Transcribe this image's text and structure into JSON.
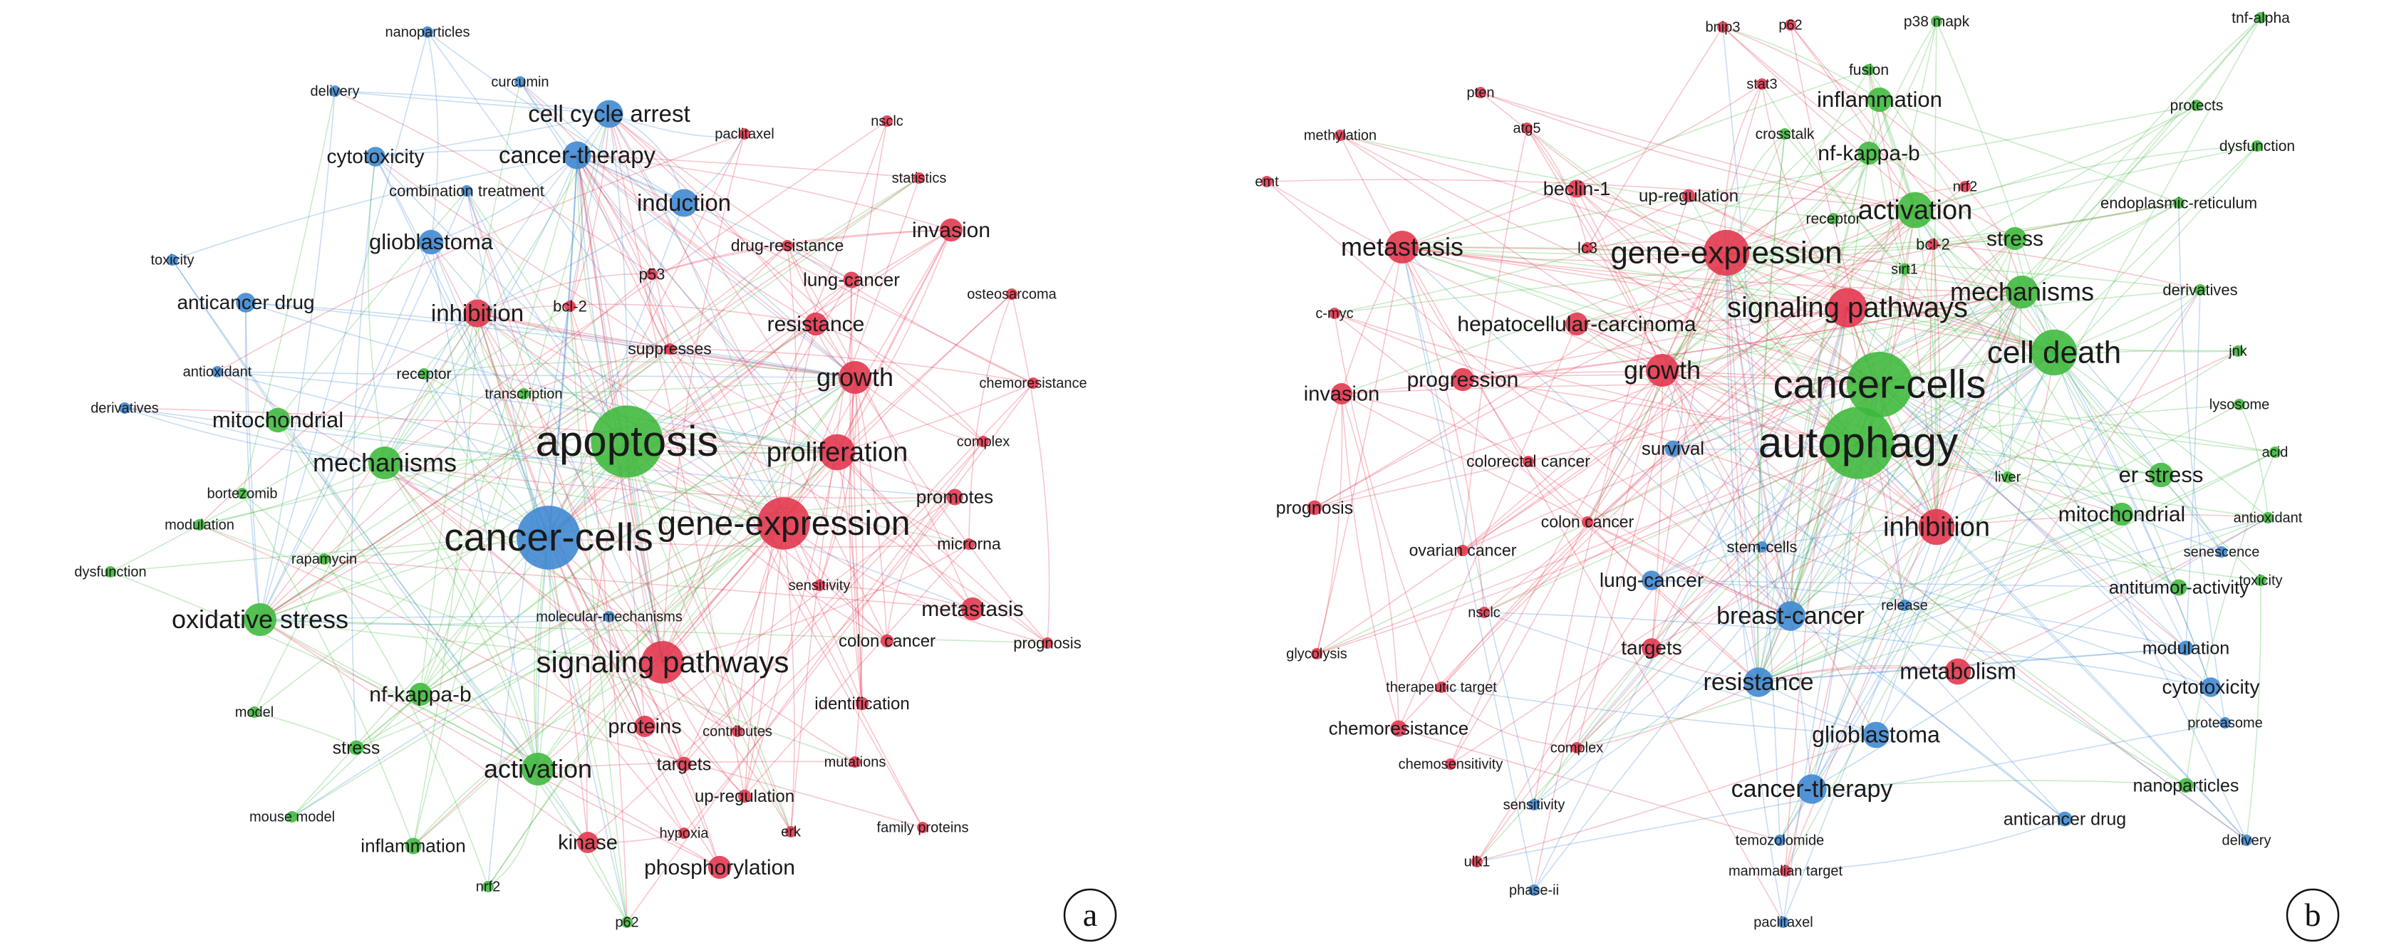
{
  "colors": {
    "red": "#e2334a",
    "green": "#3cb83a",
    "blue": "#3b86d0"
  },
  "panels": [
    {
      "letter": "a",
      "nodes": [
        {
          "label": "apoptosis",
          "c": "green",
          "w": 60
        },
        {
          "label": "cancer-cells",
          "c": "blue",
          "w": 55
        },
        {
          "label": "gene-expression",
          "c": "red",
          "w": 48
        },
        {
          "label": "signaling pathways",
          "c": "red",
          "w": 42
        },
        {
          "label": "proliferation",
          "c": "red",
          "w": 38
        },
        {
          "label": "growth",
          "c": "red",
          "w": 36
        },
        {
          "label": "mechanisms",
          "c": "green",
          "w": 36
        },
        {
          "label": "activation",
          "c": "green",
          "w": 36
        },
        {
          "label": "oxidative stress",
          "c": "green",
          "w": 36
        },
        {
          "label": "cell cycle arrest",
          "c": "blue",
          "w": 33
        },
        {
          "label": "cancer-therapy",
          "c": "blue",
          "w": 33
        },
        {
          "label": "inhibition",
          "c": "red",
          "w": 33
        },
        {
          "label": "induction",
          "c": "blue",
          "w": 33
        },
        {
          "label": "mitochondrial",
          "c": "green",
          "w": 31
        },
        {
          "label": "glioblastoma",
          "c": "blue",
          "w": 31
        },
        {
          "label": "resistance",
          "c": "red",
          "w": 30
        },
        {
          "label": "invasion",
          "c": "red",
          "w": 30
        },
        {
          "label": "metastasis",
          "c": "red",
          "w": 30
        },
        {
          "label": "phosphorylation",
          "c": "red",
          "w": 30
        },
        {
          "label": "nf-kappa-b",
          "c": "green",
          "w": 30
        },
        {
          "label": "kinase",
          "c": "red",
          "w": 29
        },
        {
          "label": "proteins",
          "c": "red",
          "w": 29
        },
        {
          "label": "cytotoxicity",
          "c": "blue",
          "w": 28
        },
        {
          "label": "anticancer drug",
          "c": "blue",
          "w": 28
        },
        {
          "label": "lung-cancer",
          "c": "red",
          "w": 26
        },
        {
          "label": "promotes",
          "c": "red",
          "w": 26
        },
        {
          "label": "inflammation",
          "c": "green",
          "w": 26
        },
        {
          "label": "stress",
          "c": "green",
          "w": 25
        },
        {
          "label": "targets",
          "c": "red",
          "w": 25
        },
        {
          "label": "colon cancer",
          "c": "red",
          "w": 24
        },
        {
          "label": "identification",
          "c": "red",
          "w": 24
        },
        {
          "label": "up-regulation",
          "c": "red",
          "w": 24
        },
        {
          "label": "drug-resistance",
          "c": "red",
          "w": 23
        },
        {
          "label": "suppresses",
          "c": "red",
          "w": 23
        },
        {
          "label": "microrna",
          "c": "red",
          "w": 23
        },
        {
          "label": "combination treatment",
          "c": "blue",
          "w": 22
        },
        {
          "label": "prognosis",
          "c": "red",
          "w": 22
        },
        {
          "label": "bcl-2",
          "c": "red",
          "w": 22
        },
        {
          "label": "p53",
          "c": "red",
          "w": 22
        },
        {
          "label": "receptor",
          "c": "green",
          "w": 21
        },
        {
          "label": "transcription",
          "c": "green",
          "w": 20
        },
        {
          "label": "molecular-mechanisms",
          "c": "blue",
          "w": 20
        },
        {
          "label": "osteosarcoma",
          "c": "red",
          "w": 20
        },
        {
          "label": "chemoresistance",
          "c": "red",
          "w": 20
        },
        {
          "label": "complex",
          "c": "red",
          "w": 20
        },
        {
          "label": "sensitivity",
          "c": "red",
          "w": 20
        },
        {
          "label": "contributes",
          "c": "red",
          "w": 20
        },
        {
          "label": "mutations",
          "c": "red",
          "w": 20
        },
        {
          "label": "family proteins",
          "c": "red",
          "w": 20
        },
        {
          "label": "hypoxia",
          "c": "red",
          "w": 20
        },
        {
          "label": "erk",
          "c": "red",
          "w": 20
        },
        {
          "label": "rapamycin",
          "c": "green",
          "w": 20
        },
        {
          "label": "bortezomib",
          "c": "green",
          "w": 20
        },
        {
          "label": "modulation",
          "c": "green",
          "w": 20
        },
        {
          "label": "dysfunction",
          "c": "green",
          "w": 20
        },
        {
          "label": "model",
          "c": "green",
          "w": 20
        },
        {
          "label": "mouse model",
          "c": "green",
          "w": 20
        },
        {
          "label": "nrf2",
          "c": "green",
          "w": 20
        },
        {
          "label": "p62",
          "c": "green",
          "w": 20
        },
        {
          "label": "derivatives",
          "c": "blue",
          "w": 20
        },
        {
          "label": "antioxidant",
          "c": "blue",
          "w": 20
        },
        {
          "label": "toxicity",
          "c": "blue",
          "w": 20
        },
        {
          "label": "delivery",
          "c": "blue",
          "w": 20
        },
        {
          "label": "nanoparticles",
          "c": "blue",
          "w": 20
        },
        {
          "label": "curcumin",
          "c": "blue",
          "w": 20
        },
        {
          "label": "paclitaxel",
          "c": "red",
          "w": 20
        },
        {
          "label": "nsclc",
          "c": "red",
          "w": 20
        },
        {
          "label": "statistics",
          "c": "red",
          "w": 20
        }
      ]
    },
    {
      "letter": "b",
      "nodes": [
        {
          "label": "autophagy",
          "c": "green",
          "w": 60
        },
        {
          "label": "cancer-cells",
          "c": "green",
          "w": 56
        },
        {
          "label": "gene-expression",
          "c": "red",
          "w": 44
        },
        {
          "label": "cell death",
          "c": "green",
          "w": 44
        },
        {
          "label": "signaling pathways",
          "c": "red",
          "w": 40
        },
        {
          "label": "activation",
          "c": "green",
          "w": 38
        },
        {
          "label": "inhibition",
          "c": "red",
          "w": 38
        },
        {
          "label": "growth",
          "c": "red",
          "w": 36
        },
        {
          "label": "metastasis",
          "c": "red",
          "w": 36
        },
        {
          "label": "mechanisms",
          "c": "green",
          "w": 36
        },
        {
          "label": "resistance",
          "c": "blue",
          "w": 34
        },
        {
          "label": "breast-cancer",
          "c": "blue",
          "w": 34
        },
        {
          "label": "cancer-therapy",
          "c": "blue",
          "w": 34
        },
        {
          "label": "glioblastoma",
          "c": "blue",
          "w": 32
        },
        {
          "label": "metabolism",
          "c": "red",
          "w": 32
        },
        {
          "label": "inflammation",
          "c": "green",
          "w": 31
        },
        {
          "label": "er stress",
          "c": "green",
          "w": 31
        },
        {
          "label": "mitochondrial",
          "c": "green",
          "w": 30
        },
        {
          "label": "stress",
          "c": "green",
          "w": 30
        },
        {
          "label": "nf-kappa-b",
          "c": "green",
          "w": 30
        },
        {
          "label": "hepatocellular-carcinoma",
          "c": "red",
          "w": 30
        },
        {
          "label": "progression",
          "c": "red",
          "w": 30
        },
        {
          "label": "invasion",
          "c": "red",
          "w": 29
        },
        {
          "label": "cytotoxicity",
          "c": "blue",
          "w": 28
        },
        {
          "label": "lung-cancer",
          "c": "blue",
          "w": 28
        },
        {
          "label": "targets",
          "c": "red",
          "w": 28
        },
        {
          "label": "beclin-1",
          "c": "red",
          "w": 27
        },
        {
          "label": "survival",
          "c": "blue",
          "w": 26
        },
        {
          "label": "antitumor-activity",
          "c": "green",
          "w": 26
        },
        {
          "label": "chemoresistance",
          "c": "red",
          "w": 26
        },
        {
          "label": "modulation",
          "c": "blue",
          "w": 25
        },
        {
          "label": "nanoparticles",
          "c": "green",
          "w": 25
        },
        {
          "label": "anticancer drug",
          "c": "blue",
          "w": 25
        },
        {
          "label": "prognosis",
          "c": "red",
          "w": 25
        },
        {
          "label": "up-regulation",
          "c": "red",
          "w": 24
        },
        {
          "label": "colorectal cancer",
          "c": "red",
          "w": 23
        },
        {
          "label": "colon cancer",
          "c": "red",
          "w": 23
        },
        {
          "label": "ovarian cancer",
          "c": "red",
          "w": 23
        },
        {
          "label": "stem-cells",
          "c": "blue",
          "w": 22
        },
        {
          "label": "lc3",
          "c": "red",
          "w": 22
        },
        {
          "label": "bcl-2",
          "c": "red",
          "w": 22
        },
        {
          "label": "derivatives",
          "c": "green",
          "w": 22
        },
        {
          "label": "endoplasmic-reticulum",
          "c": "green",
          "w": 22
        },
        {
          "label": "receptor",
          "c": "green",
          "w": 21
        },
        {
          "label": "crosstalk",
          "c": "green",
          "w": 21
        },
        {
          "label": "fusion",
          "c": "green",
          "w": 21
        },
        {
          "label": "protects",
          "c": "green",
          "w": 21
        },
        {
          "label": "dysfunction",
          "c": "green",
          "w": 21
        },
        {
          "label": "tnf-alpha",
          "c": "green",
          "w": 21
        },
        {
          "label": "p38 mapk",
          "c": "green",
          "w": 21
        },
        {
          "label": "jnk",
          "c": "green",
          "w": 20
        },
        {
          "label": "lysosome",
          "c": "green",
          "w": 20
        },
        {
          "label": "acid",
          "c": "green",
          "w": 20
        },
        {
          "label": "antioxidant",
          "c": "green",
          "w": 20
        },
        {
          "label": "senescence",
          "c": "blue",
          "w": 20
        },
        {
          "label": "toxicity",
          "c": "green",
          "w": 20
        },
        {
          "label": "proteasome",
          "c": "blue",
          "w": 20
        },
        {
          "label": "delivery",
          "c": "blue",
          "w": 20
        },
        {
          "label": "liver",
          "c": "green",
          "w": 20
        },
        {
          "label": "release",
          "c": "blue",
          "w": 20
        },
        {
          "label": "sirt1",
          "c": "green",
          "w": 20
        },
        {
          "label": "nrf2",
          "c": "red",
          "w": 20
        },
        {
          "label": "c-myc",
          "c": "red",
          "w": 20
        },
        {
          "label": "emt",
          "c": "red",
          "w": 20
        },
        {
          "label": "methylation",
          "c": "red",
          "w": 20
        },
        {
          "label": "atg5",
          "c": "red",
          "w": 20
        },
        {
          "label": "pten",
          "c": "red",
          "w": 20
        },
        {
          "label": "stat3",
          "c": "red",
          "w": 20
        },
        {
          "label": "bnip3",
          "c": "red",
          "w": 20
        },
        {
          "label": "p62",
          "c": "red",
          "w": 20
        },
        {
          "label": "nsclc",
          "c": "red",
          "w": 20
        },
        {
          "label": "glycolysis",
          "c": "red",
          "w": 20
        },
        {
          "label": "therapeutic target",
          "c": "red",
          "w": 20
        },
        {
          "label": "chemosensitivity",
          "c": "red",
          "w": 20
        },
        {
          "label": "complex",
          "c": "red",
          "w": 20
        },
        {
          "label": "sensitivity",
          "c": "blue",
          "w": 20
        },
        {
          "label": "temozolomide",
          "c": "blue",
          "w": 20
        },
        {
          "label": "mammalian target",
          "c": "red",
          "w": 20
        },
        {
          "label": "ulk1",
          "c": "red",
          "w": 20
        },
        {
          "label": "phase-ii",
          "c": "blue",
          "w": 20
        },
        {
          "label": "paclitaxel",
          "c": "blue",
          "w": 20
        }
      ]
    }
  ]
}
